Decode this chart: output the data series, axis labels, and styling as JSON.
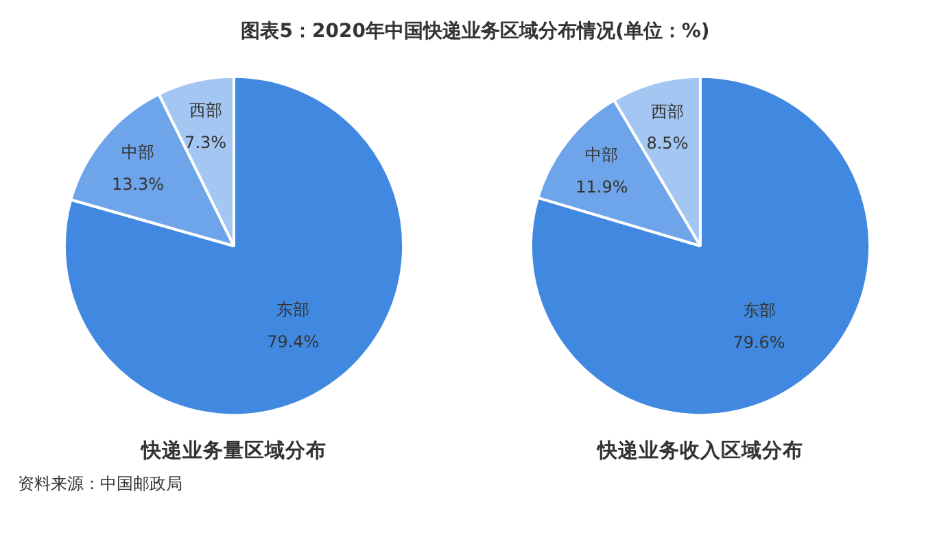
{
  "chart_data": [
    {
      "type": "pie",
      "title": "图表5：2020年中国快递业务区域分布情况(单位：%)",
      "xlabel": "快递业务量区域分布",
      "categories": [
        "东部",
        "中部",
        "西部"
      ],
      "values": [
        79.4,
        13.3,
        7.3
      ],
      "value_labels": [
        "79.4%",
        "13.3%",
        "7.3%"
      ],
      "colors": [
        "#4189e0",
        "#6ea4ea",
        "#a4c6f2"
      ],
      "annotations": [
        "资料来源：中国邮政局"
      ]
    },
    {
      "type": "pie",
      "xlabel": "快递业务收入区域分布",
      "categories": [
        "东部",
        "中部",
        "西部"
      ],
      "values": [
        79.6,
        11.9,
        8.5
      ],
      "value_labels": [
        "79.6%",
        "11.9%",
        "8.5%"
      ],
      "colors": [
        "#4189e0",
        "#6ea4ea",
        "#a4c6f2"
      ]
    }
  ]
}
